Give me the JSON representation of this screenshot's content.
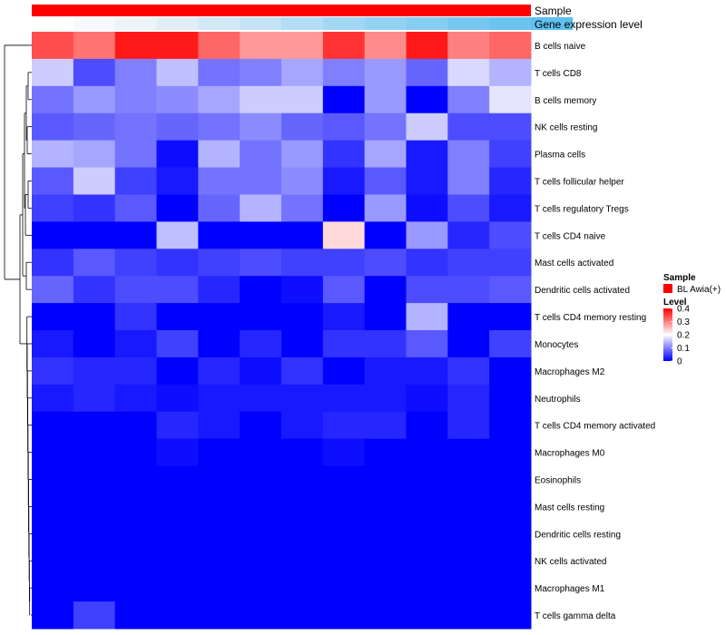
{
  "chart_data": {
    "type": "heatmap",
    "annotation_tracks": [
      "Sample",
      "Gene expression level"
    ],
    "sample_group": "BL Awia(+)",
    "sample_color": "#ff0000",
    "expression_track_colors": [
      "#ffffff",
      "#f7f9fc",
      "#eef3f9",
      "#e1eef8",
      "#d3e9f7",
      "#c4e3f6",
      "#b2ddf5",
      "#a2d7f4",
      "#94d2f3",
      "#86cdf2",
      "#77c8f1",
      "#6bc4f0",
      "#5ec0f0"
    ],
    "rows": [
      "B cells naive",
      "T cells CD8",
      "B cells memory",
      "NK cells resting",
      "Plasma cells",
      "T cells follicular helper",
      "T cells regulatory  Tregs",
      "T cells CD4 naive",
      "Mast cells activated",
      "Dendritic cells activated",
      "T cells CD4 memory resting",
      "Monocytes",
      "Macrophages M2",
      "Neutrophils",
      "T cells CD4 memory activated",
      "Macrophages M0",
      "Eosinophils",
      "Mast cells resting",
      "Dendritic cells resting",
      "NK cells activated",
      "Macrophages M1",
      "T cells gamma delta"
    ],
    "values": [
      [
        0.34,
        0.31,
        0.38,
        0.38,
        0.32,
        0.28,
        0.28,
        0.36,
        0.29,
        0.38,
        0.3,
        0.32
      ],
      [
        0.16,
        0.06,
        0.1,
        0.15,
        0.09,
        0.1,
        0.13,
        0.1,
        0.12,
        0.08,
        0.17,
        0.14
      ],
      [
        0.09,
        0.12,
        0.1,
        0.11,
        0.13,
        0.16,
        0.16,
        0.0,
        0.12,
        0.0,
        0.1,
        0.18
      ],
      [
        0.07,
        0.08,
        0.09,
        0.08,
        0.09,
        0.11,
        0.08,
        0.07,
        0.09,
        0.16,
        0.06,
        0.06
      ],
      [
        0.14,
        0.13,
        0.09,
        0.01,
        0.14,
        0.09,
        0.12,
        0.04,
        0.13,
        0.02,
        0.1,
        0.05
      ],
      [
        0.07,
        0.16,
        0.05,
        0.02,
        0.09,
        0.09,
        0.11,
        0.02,
        0.07,
        0.02,
        0.1,
        0.03
      ],
      [
        0.05,
        0.04,
        0.07,
        0.0,
        0.08,
        0.14,
        0.09,
        0.0,
        0.12,
        0.01,
        0.06,
        0.02
      ],
      [
        0.0,
        0.0,
        0.0,
        0.15,
        0.0,
        0.0,
        0.0,
        0.23,
        0.0,
        0.12,
        0.03,
        0.06
      ],
      [
        0.04,
        0.07,
        0.05,
        0.04,
        0.05,
        0.06,
        0.05,
        0.05,
        0.06,
        0.04,
        0.05,
        0.05
      ],
      [
        0.08,
        0.04,
        0.06,
        0.06,
        0.03,
        0.0,
        0.01,
        0.07,
        0.0,
        0.06,
        0.06,
        0.07
      ],
      [
        0.0,
        0.0,
        0.04,
        0.0,
        0.0,
        0.0,
        0.0,
        0.02,
        0.0,
        0.14,
        0.0,
        0.0
      ],
      [
        0.02,
        0.0,
        0.02,
        0.05,
        0.0,
        0.03,
        0.0,
        0.04,
        0.04,
        0.07,
        0.0,
        0.05
      ],
      [
        0.04,
        0.03,
        0.03,
        0.0,
        0.03,
        0.01,
        0.04,
        0.0,
        0.02,
        0.02,
        0.04,
        0.0
      ],
      [
        0.02,
        0.03,
        0.02,
        0.01,
        0.02,
        0.02,
        0.02,
        0.02,
        0.02,
        0.01,
        0.03,
        0.0
      ],
      [
        0.0,
        0.0,
        0.0,
        0.03,
        0.02,
        0.0,
        0.02,
        0.03,
        0.03,
        0.0,
        0.03,
        0.0
      ],
      [
        0.0,
        0.0,
        0.0,
        0.01,
        0.0,
        0.0,
        0.0,
        0.01,
        0.0,
        0.0,
        0.0,
        0.0
      ],
      [
        0.0,
        0.0,
        0.0,
        0.0,
        0.0,
        0.0,
        0.0,
        0.0,
        0.0,
        0.0,
        0.0,
        0.0
      ],
      [
        0.0,
        0.0,
        0.0,
        0.0,
        0.0,
        0.0,
        0.0,
        0.0,
        0.0,
        0.0,
        0.0,
        0.0
      ],
      [
        0.0,
        0.0,
        0.0,
        0.0,
        0.0,
        0.0,
        0.0,
        0.0,
        0.0,
        0.0,
        0.0,
        0.0
      ],
      [
        0.0,
        0.0,
        0.0,
        0.0,
        0.0,
        0.0,
        0.0,
        0.0,
        0.0,
        0.0,
        0.0,
        0.0
      ],
      [
        0.0,
        0.0,
        0.0,
        0.0,
        0.0,
        0.0,
        0.0,
        0.0,
        0.0,
        0.0,
        0.0,
        0.0
      ],
      [
        0.0,
        0.05,
        0.0,
        0.0,
        0.0,
        0.0,
        0.0,
        0.0,
        0.0,
        0.0,
        0.0,
        0.0
      ]
    ],
    "color_scale": {
      "low": "#0000ff",
      "mid": "#ffffff",
      "high": "#ff0000",
      "min": 0,
      "mid_value": 0.2,
      "max": 0.4
    },
    "legend": {
      "sample_title": "Sample",
      "level_title": "Level",
      "ticks": [
        "0.4",
        "0.3",
        "0.2",
        "0.1",
        "0"
      ],
      "placement": "right"
    },
    "dendrogram": "rows"
  }
}
